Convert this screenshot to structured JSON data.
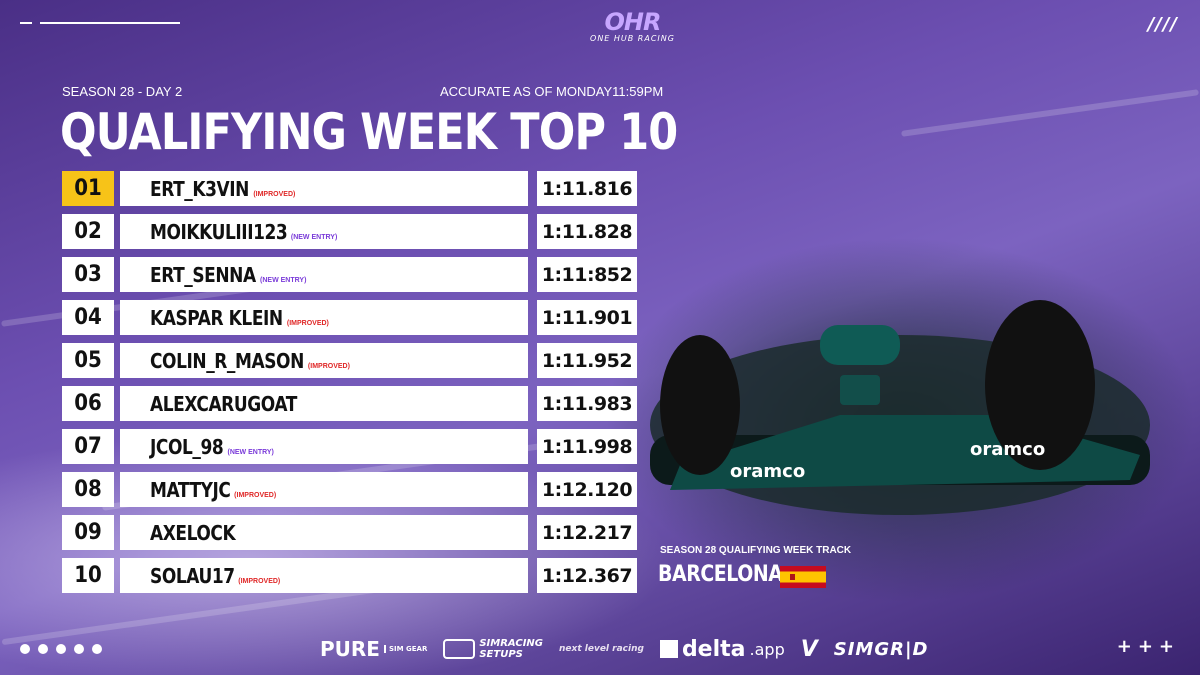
{
  "brand": {
    "mark": "OHR",
    "subtitle": "ONE HUB RACING"
  },
  "header": {
    "season_day": "SEASON 28 - DAY 2",
    "accurate": "ACCURATE AS OF MONDAY11:59PM",
    "title": "QUALIFYING WEEK TOP 10",
    "slashes": "////"
  },
  "leaderboard": [
    {
      "pos": "01",
      "name": "ERT_K3VIN",
      "tag": "(IMPROVED)",
      "tag_type": "improved",
      "time": "1:11.816"
    },
    {
      "pos": "02",
      "name": "MOIKKULIII123",
      "tag": "(NEW ENTRY)",
      "tag_type": "newentry",
      "time": "1:11.828"
    },
    {
      "pos": "03",
      "name": "ERT_SENNA",
      "tag": "(NEW ENTRY)",
      "tag_type": "newentry",
      "time": "1:11:852"
    },
    {
      "pos": "04",
      "name": "KASPAR KLEIN",
      "tag": "(IMPROVED)",
      "tag_type": "improved",
      "time": "1:11.901"
    },
    {
      "pos": "05",
      "name": "COLIN_R_MASON",
      "tag": "(IMPROVED)",
      "tag_type": "improved",
      "time": "1:11.952"
    },
    {
      "pos": "06",
      "name": "ALEXCARUGOAT",
      "tag": "",
      "tag_type": "",
      "time": "1:11.983"
    },
    {
      "pos": "07",
      "name": "JCOL_98",
      "tag": "(NEW ENTRY)",
      "tag_type": "newentry",
      "time": "1:11.998"
    },
    {
      "pos": "08",
      "name": "MATTYJC",
      "tag": "(IMPROVED)",
      "tag_type": "improved",
      "time": "1:12.120"
    },
    {
      "pos": "09",
      "name": "AXELOCK",
      "tag": "",
      "tag_type": "",
      "time": "1:12.217"
    },
    {
      "pos": "10",
      "name": "SOLAU17",
      "tag": "(IMPROVED)",
      "tag_type": "improved",
      "time": "1:12.367"
    }
  ],
  "track": {
    "label": "SEASON 28 QUALIFYING WEEK TRACK",
    "name": "BARCELONA",
    "flag_icon": "spain-flag-icon"
  },
  "sponsors": {
    "pure": "PURE",
    "pure_sub": "SIM GEAR",
    "simracing": "SIMRACING",
    "setups": "SETUPS",
    "nextlevel": "next level racing",
    "delta": "delta",
    "delta_suffix": ".app",
    "v_logo": "V",
    "simgrid": "SIMGR|D"
  },
  "footer": {
    "pluses": "+++"
  },
  "colors": {
    "gold": "#f7c318",
    "improved": "#e02828",
    "new_entry": "#7a3bd9",
    "brand_purple": "#c7a6ff"
  }
}
